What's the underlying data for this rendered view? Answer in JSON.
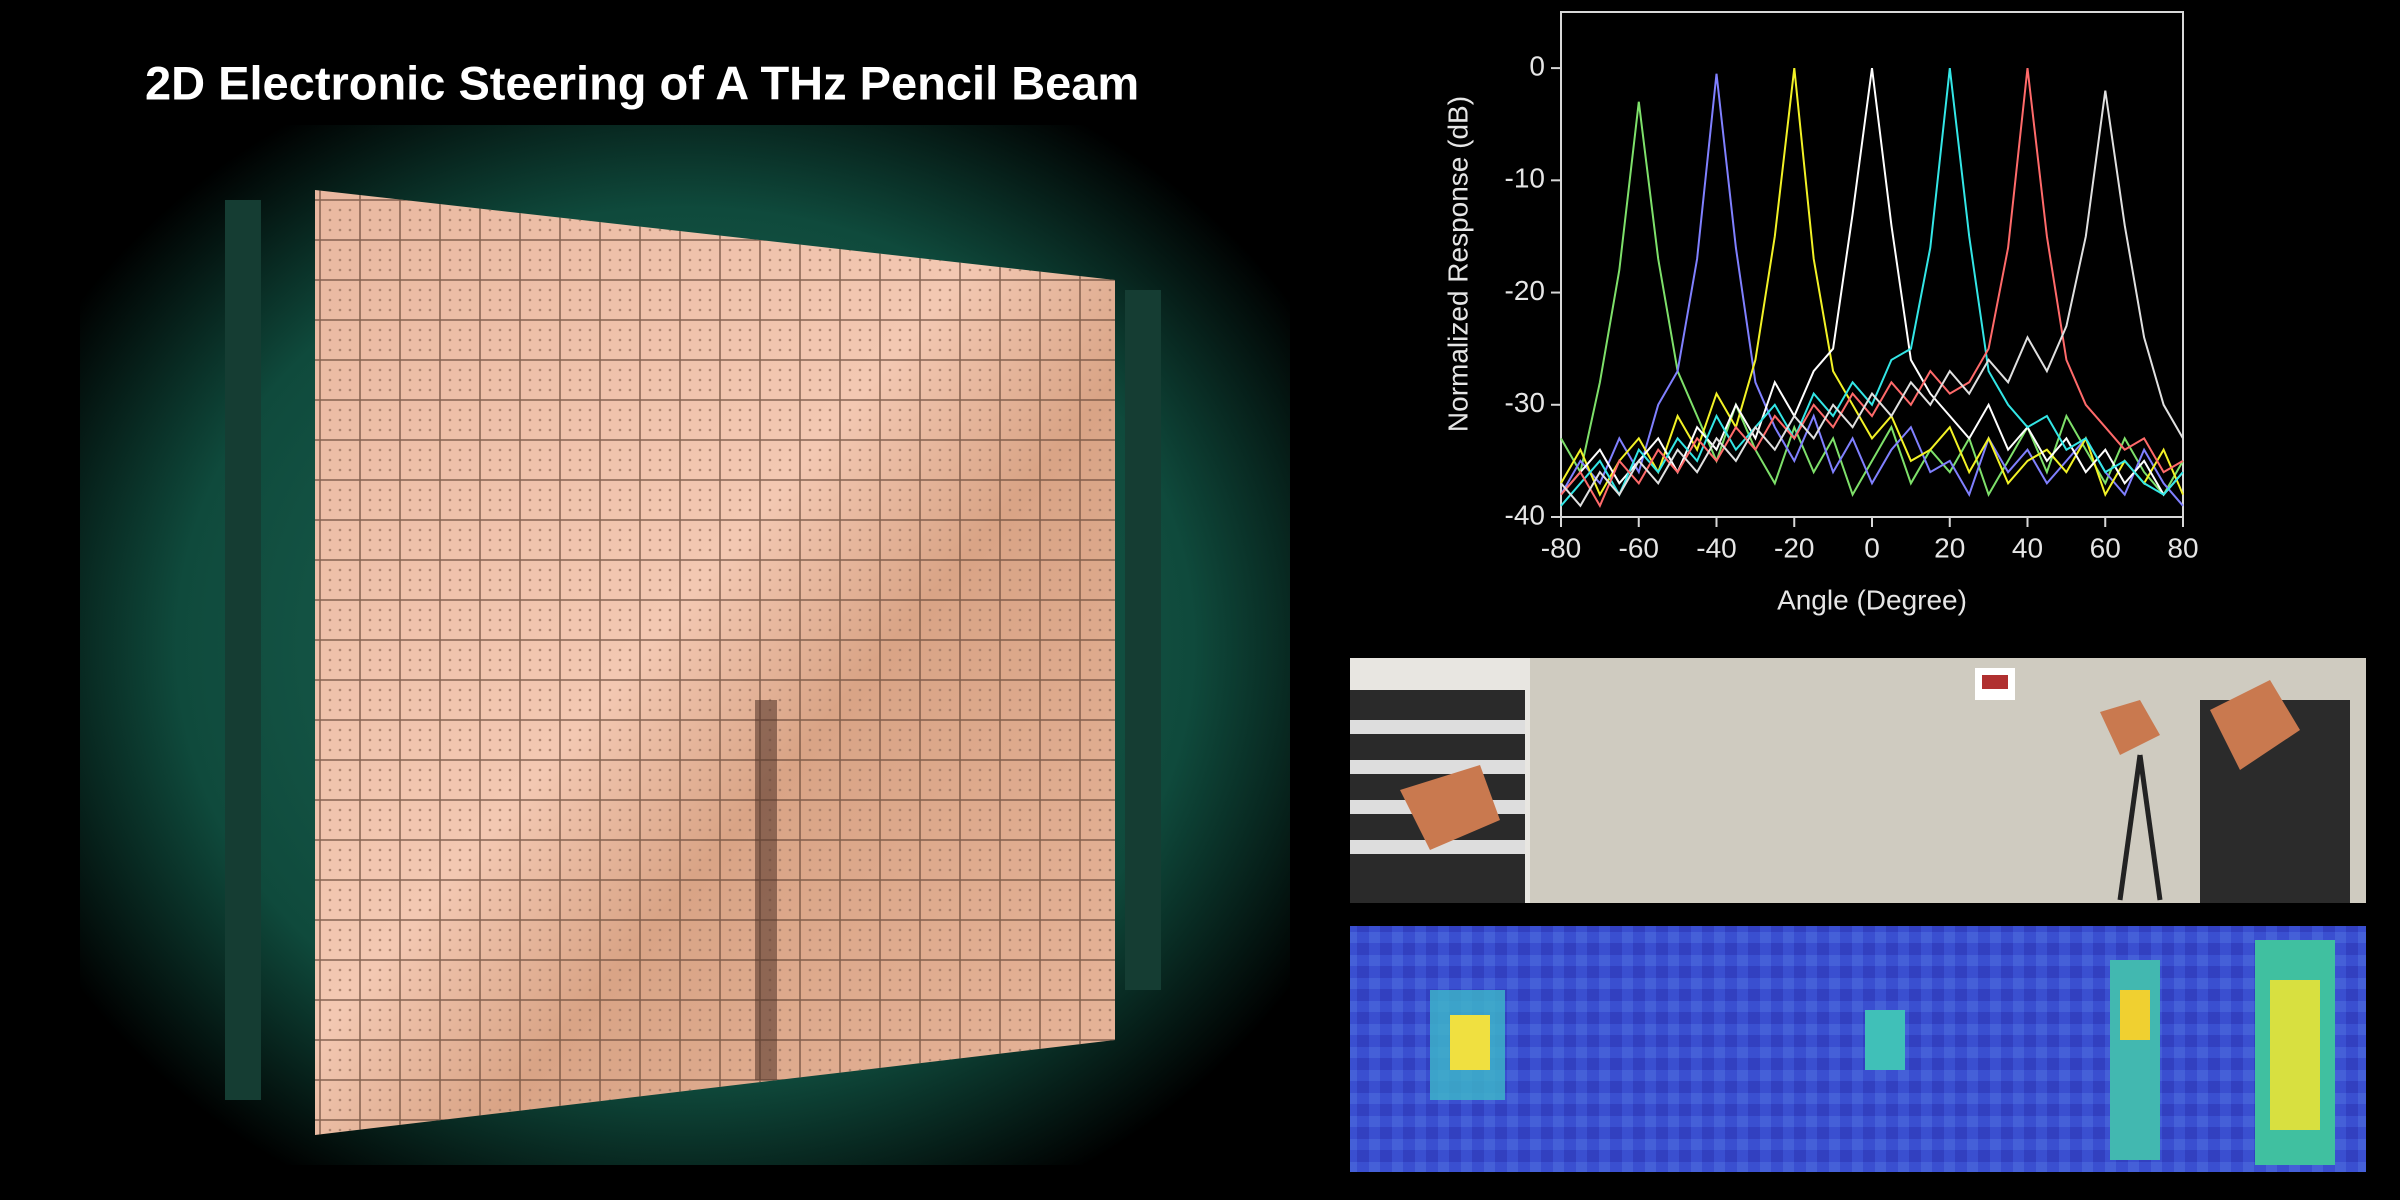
{
  "slide": {
    "title": "2D Electronic Steering of A THz Pencil Beam"
  },
  "chart_data": {
    "type": "line",
    "x_label": "Angle (Degree)",
    "y_label": "Normalized Response (dB)",
    "x": [
      -80,
      -75,
      -70,
      -65,
      -60,
      -55,
      -50,
      -45,
      -40,
      -35,
      -30,
      -25,
      -20,
      -15,
      -10,
      -5,
      0,
      5,
      10,
      15,
      20,
      25,
      30,
      35,
      40,
      45,
      50,
      55,
      60,
      65,
      70,
      75,
      80
    ],
    "xlim": [
      -80,
      80
    ],
    "xticks": [
      -80,
      -60,
      -40,
      -20,
      0,
      20,
      40,
      60,
      80
    ],
    "ylim": [
      -40,
      5
    ],
    "yticks": [
      -40,
      -30,
      -20,
      -10,
      0
    ],
    "series": [
      {
        "color": "#7ee06a",
        "values": [
          -33,
          -36,
          -28,
          -18,
          -3,
          -17,
          -27,
          -31,
          -35,
          -30,
          -34,
          -37,
          -32,
          -36,
          -33,
          -38,
          -35,
          -32,
          -37,
          -34,
          -36,
          -33,
          -38,
          -35,
          -32,
          -36,
          -31,
          -34,
          -37,
          -33,
          -36,
          -38,
          -35
        ]
      },
      {
        "color": "#8080ff",
        "values": [
          -38,
          -35,
          -37,
          -33,
          -36,
          -30,
          -27,
          -17,
          -0.5,
          -16,
          -28,
          -32,
          -35,
          -31,
          -36,
          -33,
          -37,
          -34,
          -32,
          -36,
          -35,
          -38,
          -33,
          -36,
          -34,
          -37,
          -35,
          -33,
          -36,
          -38,
          -34,
          -37,
          -39
        ]
      },
      {
        "color": "#f2f226",
        "values": [
          -37,
          -34,
          -38,
          -35,
          -33,
          -36,
          -31,
          -34,
          -29,
          -32,
          -26,
          -15,
          0,
          -17,
          -27,
          -30,
          -33,
          -31,
          -35,
          -34,
          -32,
          -36,
          -33,
          -37,
          -35,
          -34,
          -36,
          -33,
          -38,
          -35,
          -37,
          -34,
          -38
        ]
      },
      {
        "color": "#ffffff",
        "values": [
          -38,
          -36,
          -34,
          -37,
          -35,
          -33,
          -36,
          -32,
          -34,
          -30,
          -33,
          -28,
          -31,
          -27,
          -25,
          -13,
          0,
          -14,
          -26,
          -29,
          -31,
          -33,
          -30,
          -34,
          -32,
          -35,
          -33,
          -36,
          -34,
          -37,
          -35,
          -38,
          -36
        ]
      },
      {
        "color": "#33e6e6",
        "values": [
          -39,
          -37,
          -35,
          -38,
          -34,
          -36,
          -33,
          -35,
          -31,
          -34,
          -32,
          -30,
          -33,
          -29,
          -31,
          -28,
          -30,
          -26,
          -25,
          -16,
          0,
          -15,
          -27,
          -30,
          -32,
          -31,
          -34,
          -33,
          -36,
          -35,
          -37,
          -38,
          -36
        ]
      },
      {
        "color": "#ff6a6a",
        "values": [
          -38,
          -36,
          -39,
          -35,
          -37,
          -34,
          -36,
          -33,
          -35,
          -32,
          -34,
          -31,
          -33,
          -30,
          -32,
          -29,
          -31,
          -28,
          -30,
          -27,
          -29,
          -28,
          -25,
          -16,
          0,
          -15,
          -26,
          -30,
          -32,
          -34,
          -33,
          -36,
          -35
        ]
      },
      {
        "color": "#e0e0e0",
        "values": [
          -37,
          -39,
          -36,
          -38,
          -35,
          -37,
          -34,
          -36,
          -33,
          -35,
          -32,
          -34,
          -31,
          -33,
          -30,
          -32,
          -29,
          -31,
          -28,
          -30,
          -27,
          -29,
          -26,
          -28,
          -24,
          -27,
          -23,
          -15,
          -2,
          -14,
          -24,
          -30,
          -33
        ]
      }
    ]
  }
}
